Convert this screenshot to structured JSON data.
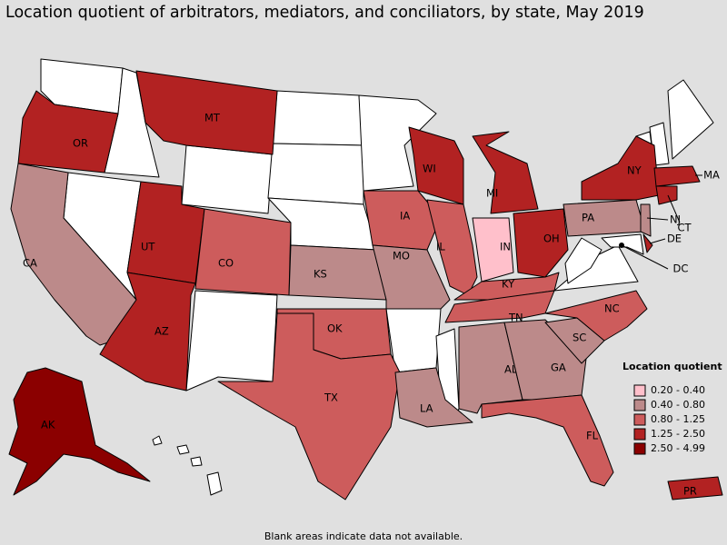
{
  "title": "Location quotient of arbitrators, mediators, and conciliators, by state, May 2019",
  "note": "Blank areas indicate data not available.",
  "legend": {
    "title": "Location quotient",
    "items": [
      {
        "label": "0.20 - 0.40",
        "color": "#ffc0cb"
      },
      {
        "label": "0.40 - 0.80",
        "color": "#bc8a8a"
      },
      {
        "label": "0.80 - 1.25",
        "color": "#cd5c5c"
      },
      {
        "label": "1.25 - 2.50",
        "color": "#b22222"
      },
      {
        "label": "2.50 - 4.99",
        "color": "#8b0000"
      }
    ]
  },
  "states": [
    {
      "label": "OR",
      "color": "#b22222"
    },
    {
      "label": "CA",
      "color": "#bc8a8a"
    },
    {
      "label": "MT",
      "color": "#b22222"
    },
    {
      "label": "UT",
      "color": "#b22222"
    },
    {
      "label": "AZ",
      "color": "#b22222"
    },
    {
      "label": "CO",
      "color": "#cd5c5c"
    },
    {
      "label": "KS",
      "color": "#bc8a8a"
    },
    {
      "label": "OK",
      "color": "#cd5c5c"
    },
    {
      "label": "TX",
      "color": "#cd5c5c"
    },
    {
      "label": "IA",
      "color": "#cd5c5c"
    },
    {
      "label": "MO",
      "color": "#bc8a8a"
    },
    {
      "label": "LA",
      "color": "#bc8a8a"
    },
    {
      "label": "WI",
      "color": "#b22222"
    },
    {
      "label": "IL",
      "color": "#cd5c5c"
    },
    {
      "label": "MI",
      "color": "#b22222"
    },
    {
      "label": "IN",
      "color": "#ffc0cb"
    },
    {
      "label": "OH",
      "color": "#b22222"
    },
    {
      "label": "KY",
      "color": "#cd5c5c"
    },
    {
      "label": "TN",
      "color": "#cd5c5c"
    },
    {
      "label": "AL",
      "color": "#bc8a8a"
    },
    {
      "label": "GA",
      "color": "#bc8a8a"
    },
    {
      "label": "FL",
      "color": "#cd5c5c"
    },
    {
      "label": "SC",
      "color": "#bc8a8a"
    },
    {
      "label": "NC",
      "color": "#cd5c5c"
    },
    {
      "label": "PA",
      "color": "#bc8a8a"
    },
    {
      "label": "NY",
      "color": "#b22222"
    },
    {
      "label": "MA",
      "color": "#b22222"
    },
    {
      "label": "CT",
      "color": "#b22222"
    },
    {
      "label": "NJ",
      "color": "#bc8a8a"
    },
    {
      "label": "DE",
      "color": "#b22222"
    },
    {
      "label": "DC",
      "color": "#8b0000"
    },
    {
      "label": "AK",
      "color": "#8b0000"
    },
    {
      "label": "PR",
      "color": "#b22222"
    }
  ]
}
